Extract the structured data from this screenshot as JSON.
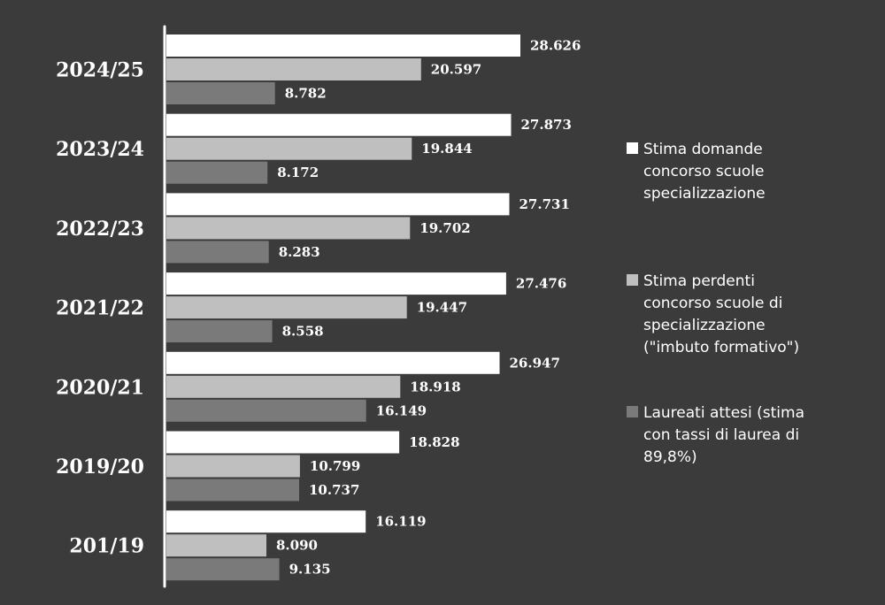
{
  "chart_data": {
    "type": "bar",
    "orientation": "horizontal",
    "categories": [
      "2024/25",
      "2023/24",
      "2022/23",
      "2021/22",
      "2020/21",
      "2019/20",
      "201/19"
    ],
    "series": [
      {
        "name": "Stima domande concorso scuole specializzazione",
        "color": "#ffffff",
        "values": [
          28626,
          27873,
          27731,
          27476,
          26947,
          18828,
          16119
        ],
        "labels": [
          "28.626",
          "27.873",
          "27.731",
          "27.476",
          "26.947",
          "18.828",
          "16.119"
        ]
      },
      {
        "name": "Stima perdenti concorso scuole di specializzazione (\"imbuto formativo\")",
        "color": "#bfbfbf",
        "values": [
          20597,
          19844,
          19702,
          19447,
          18918,
          10799,
          8090
        ],
        "labels": [
          "20.597",
          "19.844",
          "19.702",
          "19.447",
          "18.918",
          "10.799",
          "8.090"
        ]
      },
      {
        "name": "Laureati attesi (stima con tassi di laurea di 89,8%)",
        "color": "#7a7a7a",
        "values": [
          8782,
          8172,
          8283,
          8558,
          16149,
          10737,
          9135
        ],
        "labels": [
          "8.782",
          "8.172",
          "8.283",
          "8.558",
          "16.149",
          "10.737",
          "9.135"
        ]
      }
    ],
    "legend": {
      "placement": "right",
      "entries": [
        [
          "Stima domande",
          "concorso scuole",
          "specializzazione"
        ],
        [
          "Stima perdenti",
          "concorso scuole di",
          "specializzazione",
          "(\"imbuto formativo\")"
        ],
        [
          "Laureati attesi (stima",
          "con tassi di laurea di",
          "89,8%)"
        ]
      ]
    },
    "xlim": [
      0,
      30000
    ],
    "grid": false
  }
}
